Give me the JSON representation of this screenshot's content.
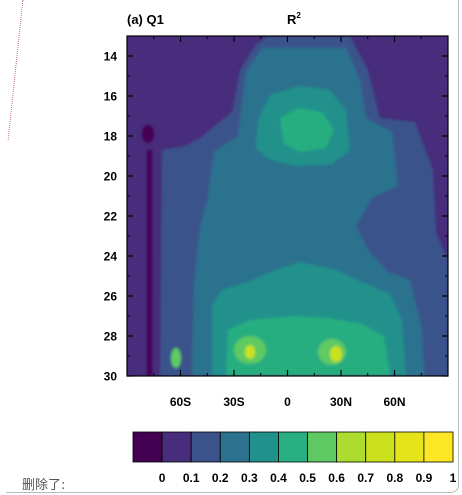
{
  "note": {
    "deleted_label": "删除了:"
  },
  "chart_data": {
    "type": "heatmap",
    "panel_label": "(a) Q1",
    "title": "R",
    "title_superscript": "2",
    "x_ticks": [
      {
        "value": -60,
        "label": "60S"
      },
      {
        "value": -30,
        "label": "30S"
      },
      {
        "value": 0,
        "label": "0"
      },
      {
        "value": 30,
        "label": "30N"
      },
      {
        "value": 60,
        "label": "60N"
      }
    ],
    "y_ticks": [
      14,
      16,
      18,
      20,
      22,
      24,
      26,
      28,
      30
    ],
    "xlim": [
      -90,
      90
    ],
    "ylim": [
      30,
      13
    ],
    "colorbar": {
      "levels": [
        "0",
        "0.1",
        "0.2",
        "0.3",
        "0.4",
        "0.5",
        "0.6",
        "0.7",
        "0.8",
        "0.9",
        "1"
      ],
      "colors": [
        "#440154",
        "#472d7b",
        "#3b528b",
        "#2c728e",
        "#21918c",
        "#28ae80",
        "#5ec962",
        "#addc30",
        "#cbe11e",
        "#e5e419",
        "#fde725"
      ]
    }
  }
}
